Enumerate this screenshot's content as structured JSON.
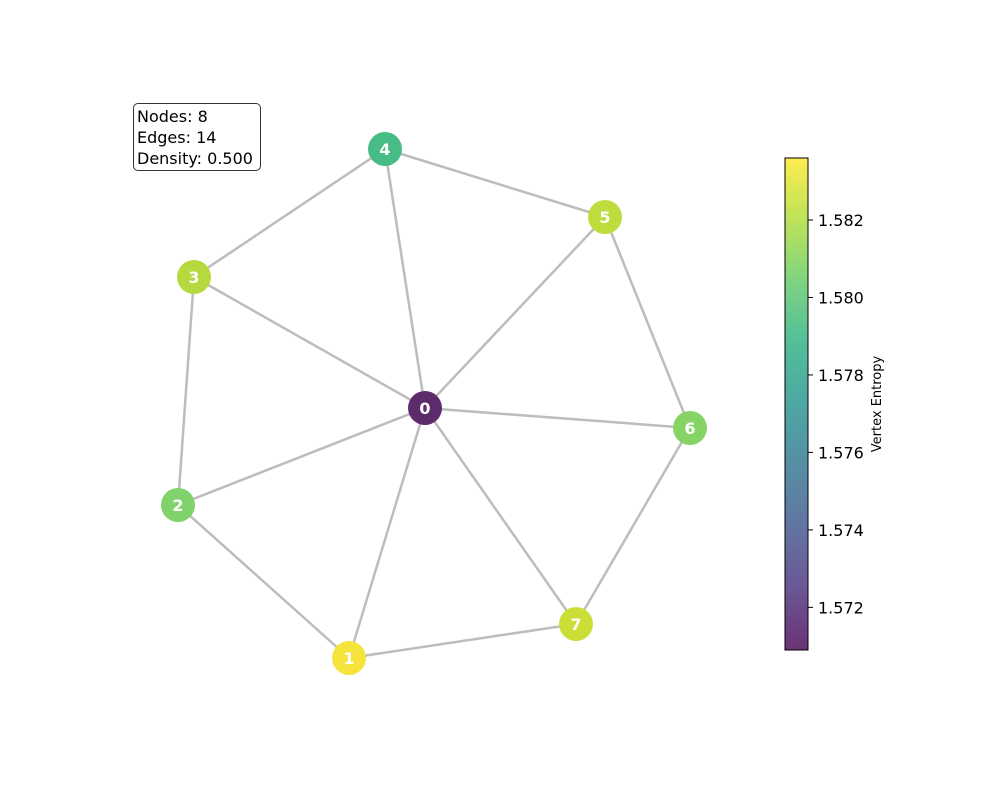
{
  "stats": {
    "nodes": "Nodes: 8",
    "edges": "Edges: 14",
    "density": "Density: 0.500"
  },
  "chart_data": {
    "type": "network",
    "title": "",
    "nodes": [
      {
        "id": "0",
        "entropy": 1.5709,
        "color": "#5c2b6b"
      },
      {
        "id": "1",
        "entropy": 1.5836,
        "color": "#f5e43c"
      },
      {
        "id": "2",
        "entropy": 1.5808,
        "color": "#7fd36a"
      },
      {
        "id": "3",
        "entropy": 1.5822,
        "color": "#b6d93e"
      },
      {
        "id": "4",
        "entropy": 1.5795,
        "color": "#47bd85"
      },
      {
        "id": "5",
        "entropy": 1.5825,
        "color": "#bedc3b"
      },
      {
        "id": "6",
        "entropy": 1.581,
        "color": "#86d466"
      },
      {
        "id": "7",
        "entropy": 1.5828,
        "color": "#cbde35"
      }
    ],
    "edges": [
      [
        "0",
        "1"
      ],
      [
        "0",
        "2"
      ],
      [
        "0",
        "3"
      ],
      [
        "0",
        "4"
      ],
      [
        "0",
        "5"
      ],
      [
        "0",
        "6"
      ],
      [
        "0",
        "7"
      ],
      [
        "1",
        "2"
      ],
      [
        "2",
        "3"
      ],
      [
        "3",
        "4"
      ],
      [
        "4",
        "5"
      ],
      [
        "5",
        "6"
      ],
      [
        "6",
        "7"
      ],
      [
        "7",
        "1"
      ]
    ],
    "edge_color": "#bdbdbd",
    "colorbar": {
      "label": "Vertex Entropy",
      "range": [
        1.5709,
        1.5836
      ],
      "ticks": [
        1.572,
        1.574,
        1.576,
        1.578,
        1.58,
        1.582
      ],
      "tick_labels": [
        "1.572",
        "1.574",
        "1.576",
        "1.578",
        "1.580",
        "1.582"
      ],
      "colormap": [
        "#440154",
        "#472c7a",
        "#3b528b",
        "#2c728e",
        "#21918c",
        "#28ae80",
        "#5ec962",
        "#addc30",
        "#fde725"
      ],
      "opacity": 0.8
    }
  }
}
